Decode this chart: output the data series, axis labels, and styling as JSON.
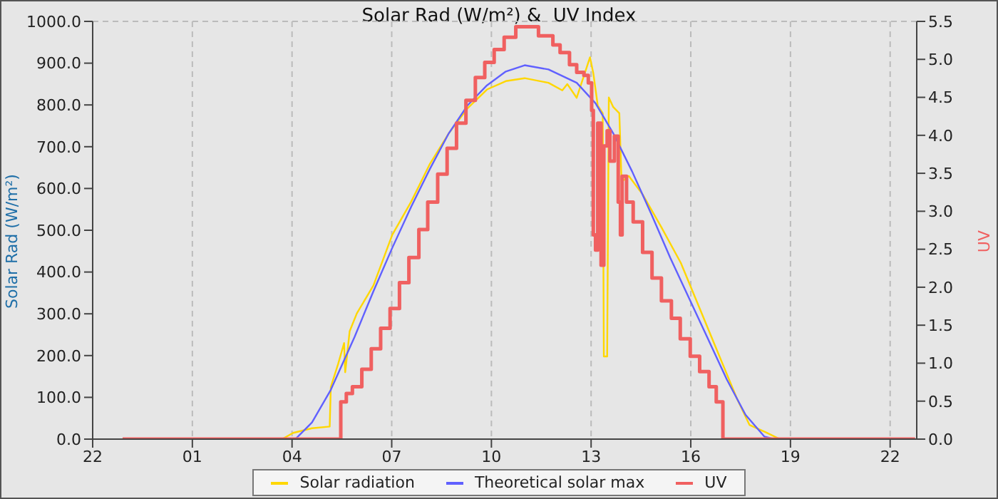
{
  "chart_data": {
    "type": "line",
    "title": "Solar Rad (W/m²) &  UV Index",
    "ylabel": "Solar Rad (W/m²)",
    "y2label": "UV",
    "xlim": [
      "--01-01T22:00",
      "--01-02T22:48"
    ],
    "xticks": [
      {
        "value": "--01-01T22:00",
        "label": "22"
      },
      {
        "value": "--01-02T01:00",
        "label": "01"
      },
      {
        "value": "--01-02T04:00",
        "label": "04"
      },
      {
        "value": "--01-02T07:00",
        "label": "07"
      },
      {
        "value": "--01-02T10:00",
        "label": "10"
      },
      {
        "value": "--01-02T13:00",
        "label": "13"
      },
      {
        "value": "--01-02T16:00",
        "label": "16"
      },
      {
        "value": "--01-02T19:00",
        "label": "19"
      },
      {
        "value": "--01-02T22:00",
        "label": "22"
      }
    ],
    "ylim": [
      0,
      1000
    ],
    "yticks": [
      {
        "value": 0,
        "label": "0.0"
      },
      {
        "value": 100,
        "label": "100.0"
      },
      {
        "value": 200,
        "label": "200.0"
      },
      {
        "value": 300,
        "label": "300.0"
      },
      {
        "value": 400,
        "label": "400.0"
      },
      {
        "value": 500,
        "label": "500.0"
      },
      {
        "value": 600,
        "label": "600.0"
      },
      {
        "value": 700,
        "label": "700.0"
      },
      {
        "value": 800,
        "label": "800.0"
      },
      {
        "value": 900,
        "label": "900.0"
      },
      {
        "value": 1000,
        "label": "1000.0"
      }
    ],
    "y2lim": [
      0,
      5.5
    ],
    "y2ticks": [
      {
        "value": 0,
        "label": "0.0"
      },
      {
        "value": 0.5,
        "label": "0.5"
      },
      {
        "value": 1,
        "label": "1.0"
      },
      {
        "value": 1.5,
        "label": "1.5"
      },
      {
        "value": 2,
        "label": "2.0"
      },
      {
        "value": 2.5,
        "label": "2.5"
      },
      {
        "value": 3,
        "label": "3.0"
      },
      {
        "value": 3.5,
        "label": "3.5"
      },
      {
        "value": 4,
        "label": "4.0"
      },
      {
        "value": 4.5,
        "label": "4.5"
      },
      {
        "value": 5,
        "label": "5.0"
      },
      {
        "value": 5.5,
        "label": "5.5"
      }
    ],
    "grid": true,
    "legend": "bottom",
    "marker": "none",
    "series": [
      {
        "name": "Solar radiation",
        "color": "#ffd700",
        "x": [
          "--01-01T22:54",
          "--01-02T03:42",
          "--01-02T04:02",
          "--01-02T04:36",
          "--01-02T05:08",
          "--01-02T05:10",
          "--01-02T05:23",
          "--01-02T05:34",
          "--01-02T05:36",
          "--01-02T05:44",
          "--01-02T05:57",
          "--01-02T06:27",
          "--01-02T07:01",
          "--01-02T07:35",
          "--01-02T08:09",
          "--01-02T08:43",
          "--01-02T09:17",
          "--01-02T09:52",
          "--01-02T10:26",
          "--01-02T11:00",
          "--01-02T11:43",
          "--01-02T12:08",
          "--01-02T12:17",
          "--01-02T12:34",
          "--01-02T12:58",
          "--01-02T13:04",
          "--01-02T13:12",
          "--01-02T13:21",
          "--01-02T13:23",
          "--01-02T13:29",
          "--01-02T13:32",
          "--01-02T13:40",
          "--01-02T13:51",
          "--01-02T13:55",
          "--01-02T14:08",
          "--01-02T14:33",
          "--01-02T15:07",
          "--01-02T15:42",
          "--01-02T16:16",
          "--01-02T16:50",
          "--01-02T17:24",
          "--01-02T17:46",
          "--01-02T18:16",
          "--01-02T18:41",
          "--01-02T22:45"
        ],
        "values": [
          0,
          0,
          15,
          26,
          30,
          125,
          179,
          230,
          160,
          258,
          301,
          368,
          489,
          568,
          659,
          732,
          792,
          837,
          857,
          864,
          853,
          835,
          850,
          817,
          914,
          876,
          799,
          780,
          198,
          198,
          818,
          795,
          780,
          616,
          630,
          586,
          507,
          422,
          313,
          204,
          95,
          34,
          16,
          0,
          0
        ]
      },
      {
        "name": "Theoretical solar max",
        "color": "#6060ff",
        "x": [
          "--01-01T22:54",
          "--01-02T04:06",
          "--01-02T04:36",
          "--01-02T05:10",
          "--01-02T05:53",
          "--01-02T06:27",
          "--01-02T07:01",
          "--01-02T07:35",
          "--01-02T08:09",
          "--01-02T08:43",
          "--01-02T09:17",
          "--01-02T09:52",
          "--01-02T10:26",
          "--01-02T11:00",
          "--01-02T11:43",
          "--01-02T12:34",
          "--01-02T13:08",
          "--01-02T13:40",
          "--01-02T14:14",
          "--01-02T14:49",
          "--01-02T15:23",
          "--01-02T15:57",
          "--01-02T16:31",
          "--01-02T17:05",
          "--01-02T17:39",
          "--01-02T18:13",
          "--01-02T18:30",
          "--01-02T22:45"
        ],
        "values": [
          0,
          0,
          40,
          118,
          245,
          354,
          458,
          556,
          647,
          732,
          799,
          847,
          880,
          895,
          885,
          853,
          804,
          732,
          641,
          538,
          434,
          337,
          240,
          143,
          58,
          6,
          0,
          0
        ]
      },
      {
        "name": "UV",
        "color": "#f06060",
        "type": "step",
        "axis": "y2",
        "x": [
          "--01-01T22:54",
          "--01-02T05:28",
          "--01-02T05:38",
          "--01-02T05:49",
          "--01-02T06:06",
          "--01-02T06:23",
          "--01-02T06:40",
          "--01-02T06:57",
          "--01-02T07:14",
          "--01-02T07:31",
          "--01-02T07:49",
          "--01-02T08:05",
          "--01-02T08:23",
          "--01-02T08:40",
          "--01-02T08:57",
          "--01-02T09:14",
          "--01-02T09:31",
          "--01-02T09:48",
          "--01-02T10:05",
          "--01-02T10:23",
          "--01-02T10:44",
          "--01-02T11:25",
          "--01-02T11:51",
          "--01-02T12:04",
          "--01-02T12:21",
          "--01-02T12:34",
          "--01-02T12:47",
          "--01-02T12:55",
          "--01-02T13:01",
          "--01-02T13:04",
          "--01-02T13:08",
          "--01-02T13:12",
          "--01-02T13:18",
          "--01-02T13:23",
          "--01-02T13:29",
          "--01-02T13:34",
          "--01-02T13:42",
          "--01-02T13:49",
          "--01-02T13:53",
          "--01-02T13:56",
          "--01-02T14:04",
          "--01-02T14:16",
          "--01-02T14:33",
          "--01-02T14:50",
          "--01-02T15:07",
          "--01-02T15:25",
          "--01-02T15:41",
          "--01-02T15:59",
          "--01-02T16:16",
          "--01-02T16:33",
          "--01-02T16:46",
          "--01-02T16:58",
          "--01-02T22:45"
        ],
        "values": [
          0,
          0.49,
          0.6,
          0.69,
          0.92,
          1.19,
          1.46,
          1.72,
          2.06,
          2.39,
          2.76,
          3.12,
          3.49,
          3.83,
          4.16,
          4.46,
          4.76,
          4.96,
          5.13,
          5.29,
          5.43,
          5.31,
          5.19,
          5.09,
          4.93,
          4.83,
          4.79,
          4.69,
          4.33,
          2.69,
          2.49,
          4.16,
          2.29,
          3.86,
          4.06,
          3.66,
          3.99,
          3.12,
          2.69,
          3.46,
          3.12,
          2.86,
          2.46,
          2.12,
          1.82,
          1.59,
          1.32,
          1.09,
          0.89,
          0.69,
          0.49,
          0,
          0
        ]
      }
    ]
  }
}
